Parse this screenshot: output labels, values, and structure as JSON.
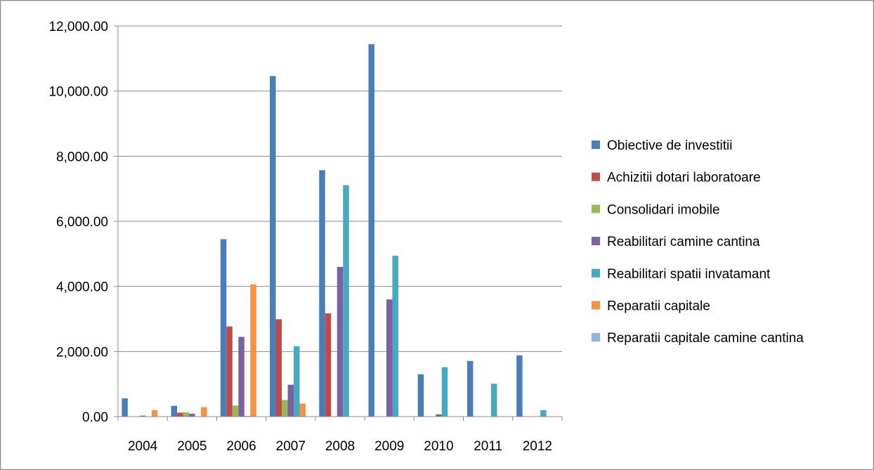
{
  "chart_data": {
    "type": "bar",
    "title": "",
    "xlabel": "",
    "ylabel": "",
    "ylim": [
      0,
      12000
    ],
    "yticks": [
      0,
      2000,
      4000,
      6000,
      8000,
      10000,
      12000
    ],
    "ytick_labels": [
      "0.00",
      "2,000.00",
      "4,000.00",
      "6,000.00",
      "8,000.00",
      "10,000.00",
      "12,000.00"
    ],
    "grid": true,
    "legend_position": "right",
    "categories": [
      "2004",
      "2005",
      "2006",
      "2007",
      "2008",
      "2009",
      "2010",
      "2011",
      "2012"
    ],
    "series": [
      {
        "name": "Obiective de investitii",
        "color": "#4a7ebb",
        "values": [
          560,
          330,
          5450,
          10460,
          7570,
          11440,
          1300,
          1710,
          1880
        ]
      },
      {
        "name": "Achizitii dotari laboratoare",
        "color": "#be4b48",
        "values": [
          0,
          120,
          2770,
          2990,
          3170,
          0,
          0,
          0,
          0
        ]
      },
      {
        "name": "Consolidari imobile",
        "color": "#98b954",
        "values": [
          0,
          130,
          340,
          510,
          0,
          0,
          0,
          0,
          0
        ]
      },
      {
        "name": "Reabilitari camine cantina",
        "color": "#7d60a0",
        "values": [
          30,
          90,
          2450,
          980,
          4600,
          3600,
          70,
          0,
          0
        ]
      },
      {
        "name": "Reabilitari spatii invatamant",
        "color": "#46aac5",
        "values": [
          0,
          0,
          20,
          2160,
          7110,
          4940,
          1520,
          1010,
          200
        ]
      },
      {
        "name": "Reparatii capitale",
        "color": "#f69240",
        "values": [
          200,
          290,
          4060,
          400,
          0,
          0,
          0,
          0,
          0
        ]
      },
      {
        "name": "Reparatii capitale camine cantina",
        "color": "#8eb4e3",
        "values": [
          0,
          0,
          0,
          0,
          0,
          0,
          0,
          0,
          0
        ]
      }
    ]
  }
}
